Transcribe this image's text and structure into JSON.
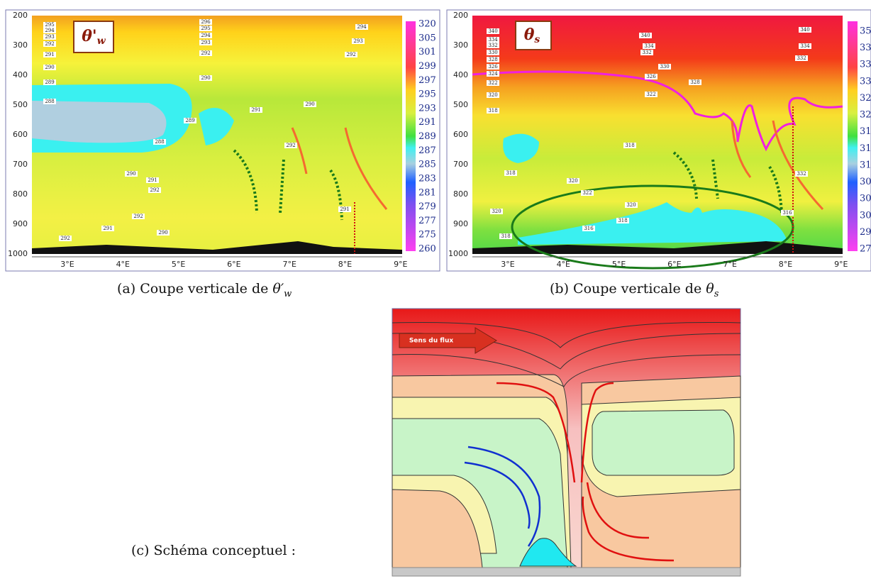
{
  "panels": [
    {
      "symbol": "θ'",
      "symbol_sub": "w",
      "yticks": [
        "200",
        "300",
        "400",
        "500",
        "600",
        "700",
        "800",
        "900",
        "1000"
      ],
      "xticks": [
        "3°E",
        "4°E",
        "5°E",
        "6°E",
        "7°E",
        "8°E",
        "9°E"
      ],
      "colorbar": [
        "320",
        "305",
        "301",
        "299",
        "297",
        "295",
        "293",
        "291",
        "289",
        "287",
        "285",
        "283",
        "281",
        "279",
        "277",
        "275",
        "260"
      ],
      "contour_labels": [
        "295",
        "294",
        "293",
        "292",
        "291",
        "290",
        "289",
        "288",
        "296",
        "295",
        "294",
        "293",
        "292",
        "290",
        "288",
        "290",
        "291",
        "292",
        "292",
        "291",
        "290",
        "292",
        "294",
        "293",
        "292",
        "289",
        "291",
        "292",
        "290",
        "291"
      ],
      "caption": "(a) Coupe verticale de ",
      "caption_symbol": "θ′",
      "caption_sub": "w"
    },
    {
      "symbol": "θ",
      "symbol_sub": "s",
      "yticks": [
        "200",
        "300",
        "400",
        "500",
        "600",
        "700",
        "800",
        "900",
        "1000"
      ],
      "xticks": [
        "3°E",
        "4°E",
        "5°E",
        "6°E",
        "7°E",
        "8°E",
        "9°E"
      ],
      "colorbar": [
        "35",
        "33",
        "33",
        "33",
        "32",
        "32",
        "31",
        "31",
        "31",
        "30",
        "30",
        "30",
        "29",
        "27"
      ],
      "contour_labels": [
        "340",
        "334",
        "332",
        "330",
        "328",
        "326",
        "324",
        "322",
        "320",
        "318",
        "340",
        "334",
        "332",
        "330",
        "328",
        "326",
        "322",
        "318",
        "318",
        "320",
        "322",
        "320",
        "318",
        "316",
        "318",
        "320",
        "340",
        "334",
        "332",
        "332",
        "316"
      ],
      "caption": "(b) Coupe verticale de ",
      "caption_symbol": "θ",
      "caption_sub": "s"
    }
  ],
  "schema": {
    "flow_label": "Sens du flux",
    "caption": "(c) Schéma conceptuel :"
  }
}
